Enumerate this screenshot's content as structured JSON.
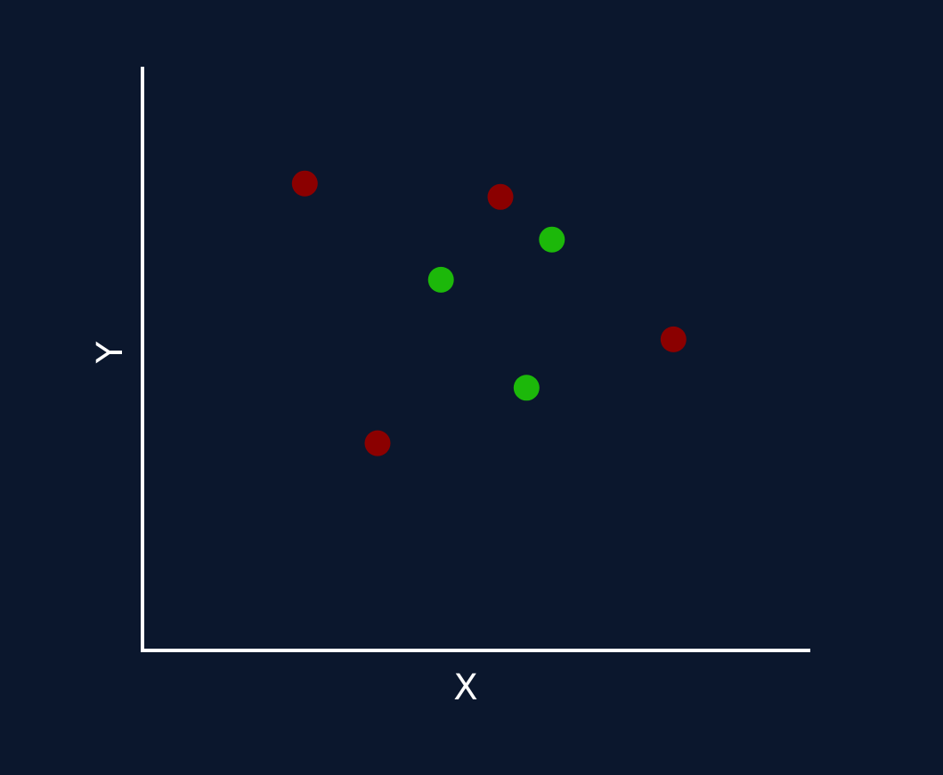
{
  "chart_data": {
    "type": "scatter",
    "title": "",
    "xlabel": "X",
    "ylabel": "Y",
    "xlim": [
      0,
      10
    ],
    "ylim": [
      0,
      10
    ],
    "grid": false,
    "background": "#0b172d",
    "axis_color": "#ffffff",
    "series": [
      {
        "color": "#8b0000",
        "points": [
          {
            "x": 2.43,
            "y": 8.0
          },
          {
            "x": 5.36,
            "y": 7.77
          },
          {
            "x": 7.95,
            "y": 5.33
          },
          {
            "x": 3.52,
            "y": 3.55
          }
        ]
      },
      {
        "color": "#1cb80a",
        "points": [
          {
            "x": 6.13,
            "y": 7.04
          },
          {
            "x": 4.47,
            "y": 6.35
          },
          {
            "x": 5.75,
            "y": 4.5
          }
        ]
      }
    ]
  }
}
